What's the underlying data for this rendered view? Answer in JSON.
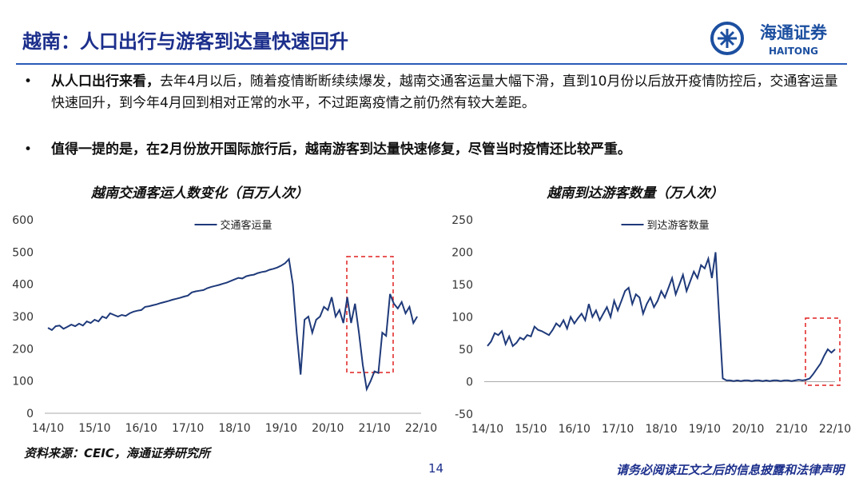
{
  "header": {
    "title": "越南：人口出行与游客到达量快速回升",
    "logo_cn": "海通证券",
    "logo_en": "HAITONG"
  },
  "bullets": [
    {
      "bold": "从人口出行来看，",
      "text": "去年4月以后，随着疫情断断续续爆发，越南交通客运量大幅下滑，直到10月份以后放开疫情防控后，交通客运量快速回升，到今年4月回到相对正常的水平，不过距离疫情之前仍然有较大差距。"
    },
    {
      "bold": "值得一提的是，在2月份放开国际旅行后，越南游客到达量快速修复，尽管当时疫情还比较严重。",
      "text": ""
    }
  ],
  "chart_data": [
    {
      "type": "line",
      "title": "越南交通客运人数变化（百万人次）",
      "categories": [
        "14/10",
        "14/11",
        "14/12",
        "15/01",
        "15/02",
        "15/03",
        "15/04",
        "15/05",
        "15/06",
        "15/07",
        "15/08",
        "15/09",
        "15/10",
        "15/11",
        "15/12",
        "16/01",
        "16/02",
        "16/03",
        "16/04",
        "16/05",
        "16/06",
        "16/07",
        "16/08",
        "16/09",
        "16/10",
        "16/11",
        "16/12",
        "17/01",
        "17/02",
        "17/03",
        "17/04",
        "17/05",
        "17/06",
        "17/07",
        "17/08",
        "17/09",
        "17/10",
        "17/11",
        "17/12",
        "18/01",
        "18/02",
        "18/03",
        "18/04",
        "18/05",
        "18/06",
        "18/07",
        "18/08",
        "18/09",
        "18/10",
        "18/11",
        "18/12",
        "19/01",
        "19/02",
        "19/03",
        "19/04",
        "19/05",
        "19/06",
        "19/07",
        "19/08",
        "19/09",
        "19/10",
        "19/11",
        "19/12",
        "20/01",
        "20/02",
        "20/03",
        "20/04",
        "20/05",
        "20/06",
        "20/07",
        "20/08",
        "20/09",
        "20/10",
        "20/11",
        "20/12",
        "21/01",
        "21/02",
        "21/03",
        "21/04",
        "21/05",
        "21/06",
        "21/07",
        "21/08",
        "21/09",
        "21/10",
        "21/11",
        "21/12",
        "22/01",
        "22/02",
        "22/03",
        "22/04",
        "22/05",
        "22/06",
        "22/07",
        "22/08",
        "22/09"
      ],
      "series": [
        {
          "name": "交通客运量",
          "color": "#1f3a7a",
          "values": [
            265,
            258,
            270,
            272,
            262,
            268,
            275,
            270,
            278,
            272,
            285,
            280,
            290,
            285,
            300,
            295,
            310,
            305,
            300,
            305,
            302,
            310,
            315,
            318,
            320,
            330,
            332,
            335,
            338,
            342,
            345,
            348,
            352,
            355,
            358,
            362,
            365,
            375,
            378,
            380,
            382,
            388,
            392,
            395,
            398,
            402,
            405,
            410,
            415,
            420,
            418,
            425,
            428,
            430,
            435,
            438,
            440,
            445,
            448,
            452,
            458,
            465,
            478,
            400,
            250,
            120,
            290,
            300,
            250,
            290,
            300,
            330,
            320,
            360,
            300,
            320,
            280,
            360,
            280,
            340,
            250,
            150,
            75,
            100,
            130,
            125,
            250,
            240,
            370,
            340,
            325,
            345,
            310,
            330,
            280,
            300
          ]
        }
      ],
      "ylim": [
        0,
        600
      ],
      "yticks": [
        0,
        100,
        200,
        300,
        400,
        500,
        600
      ],
      "xticks": [
        "14/10",
        "15/10",
        "16/10",
        "17/10",
        "18/10",
        "19/10",
        "20/10",
        "21/10",
        "22/10"
      ]
    },
    {
      "type": "line",
      "title": "越南到达游客数量（万人次）",
      "categories": [
        "14/10",
        "14/11",
        "14/12",
        "15/01",
        "15/02",
        "15/03",
        "15/04",
        "15/05",
        "15/06",
        "15/07",
        "15/08",
        "15/09",
        "15/10",
        "15/11",
        "15/12",
        "16/01",
        "16/02",
        "16/03",
        "16/04",
        "16/05",
        "16/06",
        "16/07",
        "16/08",
        "16/09",
        "16/10",
        "16/11",
        "16/12",
        "17/01",
        "17/02",
        "17/03",
        "17/04",
        "17/05",
        "17/06",
        "17/07",
        "17/08",
        "17/09",
        "17/10",
        "17/11",
        "17/12",
        "18/01",
        "18/02",
        "18/03",
        "18/04",
        "18/05",
        "18/06",
        "18/07",
        "18/08",
        "18/09",
        "18/10",
        "18/11",
        "18/12",
        "19/01",
        "19/02",
        "19/03",
        "19/04",
        "19/05",
        "19/06",
        "19/07",
        "19/08",
        "19/09",
        "19/10",
        "19/11",
        "19/12",
        "20/01",
        "20/02",
        "20/03",
        "20/04",
        "20/05",
        "20/06",
        "20/07",
        "20/08",
        "20/09",
        "20/10",
        "20/11",
        "20/12",
        "21/01",
        "21/02",
        "21/03",
        "21/04",
        "21/05",
        "21/06",
        "21/07",
        "21/08",
        "21/09",
        "21/10",
        "21/11",
        "21/12",
        "22/01",
        "22/02",
        "22/03",
        "22/04",
        "22/05",
        "22/06",
        "22/07",
        "22/08",
        "22/09",
        "22/10"
      ],
      "series": [
        {
          "name": "到达游客数量",
          "color": "#1f3a7a",
          "values": [
            55,
            62,
            75,
            72,
            78,
            58,
            70,
            55,
            60,
            68,
            65,
            72,
            70,
            85,
            80,
            78,
            75,
            72,
            80,
            90,
            85,
            95,
            82,
            100,
            90,
            98,
            105,
            95,
            120,
            100,
            110,
            95,
            105,
            115,
            100,
            125,
            110,
            125,
            140,
            145,
            120,
            135,
            130,
            105,
            120,
            130,
            115,
            125,
            140,
            130,
            145,
            160,
            135,
            150,
            165,
            140,
            155,
            170,
            160,
            180,
            175,
            190,
            160,
            200,
            100,
            5,
            2,
            2,
            1,
            2,
            1,
            2,
            2,
            1,
            2,
            2,
            1,
            2,
            1,
            2,
            2,
            1,
            2,
            2,
            1,
            2,
            3,
            2,
            3,
            5,
            12,
            20,
            28,
            40,
            50,
            45,
            50
          ]
        }
      ],
      "ylim": [
        -50,
        250
      ],
      "yticks": [
        -50,
        0,
        50,
        100,
        150,
        200,
        250
      ],
      "xticks": [
        "14/10",
        "15/10",
        "16/10",
        "17/10",
        "18/10",
        "19/10",
        "20/10",
        "21/10",
        "22/10"
      ]
    }
  ],
  "source": "资料来源：CEIC，海通证券研究所",
  "page_number": "14",
  "disclaimer": "请务必阅读正文之后的信息披露和法律声明"
}
